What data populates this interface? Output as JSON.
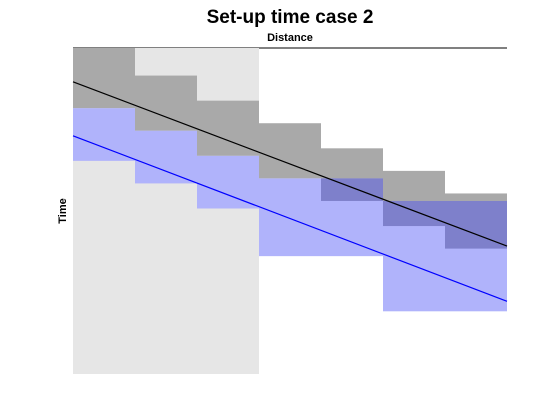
{
  "title": "Set-up time case 2",
  "xlabel": "Distance",
  "ylabel": "Time",
  "colors": {
    "background_region": "#e6e6e6",
    "gray_band": "#a9a9a9",
    "blue_band": "#b0b3fb",
    "overlap_band": "#7e80cb",
    "black_line": "#000000",
    "blue_line": "#0000ff"
  },
  "diagram": {
    "x_range": [
      0,
      7
    ],
    "y_range": [
      0,
      13
    ],
    "background_region": {
      "x0": 0,
      "x1": 3,
      "y0": 0,
      "y1": 13
    },
    "gray_steps": [
      {
        "x0": 0,
        "x1": 1,
        "y0": 0,
        "y1": 2.4
      },
      {
        "x0": 1,
        "x1": 2,
        "y0": 1.1,
        "y1": 3.3
      },
      {
        "x0": 2,
        "x1": 3,
        "y0": 2.1,
        "y1": 4.3
      },
      {
        "x0": 3,
        "x1": 4,
        "y0": 3,
        "y1": 5.2
      },
      {
        "x0": 4,
        "x1": 5,
        "y0": 4,
        "y1": 6.1
      },
      {
        "x0": 5,
        "x1": 6,
        "y0": 4.9,
        "y1": 7.1
      },
      {
        "x0": 6,
        "x1": 7,
        "y0": 5.8,
        "y1": 8
      }
    ],
    "blue_steps": [
      {
        "x0": 0,
        "x1": 1,
        "y0": 2.4,
        "y1": 4.5
      },
      {
        "x0": 1,
        "x1": 2,
        "y0": 3.3,
        "y1": 5.4
      },
      {
        "x0": 2,
        "x1": 3,
        "y0": 4.3,
        "y1": 6.4
      },
      {
        "x0": 3,
        "x1": 4,
        "y0": 5.2,
        "y1": 8.3
      },
      {
        "x0": 4,
        "x1": 5,
        "y0": 5.2,
        "y1": 8.3
      },
      {
        "x0": 5,
        "x1": 6,
        "y0": 6.1,
        "y1": 10.5
      },
      {
        "x0": 6,
        "x1": 7,
        "y0": 6.1,
        "y1": 10.5
      }
    ],
    "black_line": {
      "x0": 0,
      "y0": 1.35,
      "x1": 7,
      "y1": 7.9
    },
    "blue_line": {
      "x0": 0,
      "y0": 3.5,
      "x1": 7,
      "y1": 10.1
    }
  }
}
